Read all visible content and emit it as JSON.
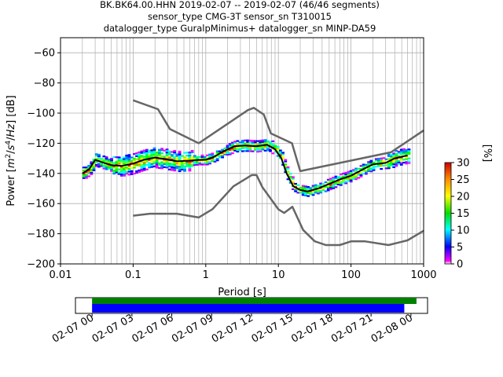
{
  "header": {
    "line1": "BK.BK64.00.HHN   2019-02-07 -- 2019-02-07  (46/46 segments)",
    "line2": "sensor_type CMG-3T sensor_sn T310015",
    "line3": "datalogger_type GuralpMinimus+ datalogger_sn MINP-DA59"
  },
  "chart_data": [
    {
      "type": "heatmap",
      "title": "BK.BK64.00.HHN   2019-02-07 -- 2019-02-07  (46/46 segments)",
      "xlabel": "Period [s]",
      "ylabel": "Power [m2/s4/Hz] [dB]",
      "ylabel_parts": [
        "Power [",
        "m",
        "2",
        "/",
        "s",
        "4",
        "/",
        "Hz",
        "] [dB]"
      ],
      "xscale": "log",
      "xlim": [
        0.01,
        1000
      ],
      "ylim": [
        -200,
        -50
      ],
      "x_ticks": [
        0.01,
        0.1,
        1,
        10,
        100,
        1000
      ],
      "x_tick_labels": [
        "0.01",
        "0.1",
        "1",
        "10",
        "100",
        "1000"
      ],
      "y_ticks": [
        -200,
        -180,
        -160,
        -140,
        -120,
        -100,
        -80,
        -60
      ],
      "y_tick_labels": [
        "−200",
        "−180",
        "−160",
        "−140",
        "−120",
        "−100",
        "−80",
        "−60"
      ],
      "grid": true,
      "colorbar": {
        "label": "[%]",
        "range": [
          0,
          30
        ],
        "ticks": [
          0,
          5,
          10,
          15,
          20,
          25,
          30
        ],
        "tick_labels": [
          "0",
          "5",
          "10",
          "15",
          "20",
          "25",
          "30"
        ]
      },
      "series": [
        {
          "role": "new-high-noise-model",
          "color": "#666666",
          "x": [
            0.1,
            0.22,
            0.32,
            0.8,
            3.8,
            4.6,
            6.3,
            7.9,
            15.4,
            20,
            354.8,
            1000
          ],
          "y": [
            -91.5,
            -97.4,
            -110.5,
            -120,
            -98,
            -96.5,
            -101,
            -113.5,
            -120,
            -138.5,
            -126,
            -111.5
          ]
        },
        {
          "role": "new-low-noise-model",
          "color": "#666666",
          "x": [
            0.1,
            0.17,
            0.4,
            0.8,
            1.24,
            2.4,
            4.3,
            5,
            6,
            10,
            12,
            15.6,
            21.9,
            31.6,
            45,
            70,
            101,
            154,
            328,
            600,
            1000
          ],
          "y": [
            -168,
            -166.7,
            -166.7,
            -169.2,
            -163.7,
            -148.6,
            -141.1,
            -141.1,
            -149,
            -163.8,
            -166.2,
            -162.1,
            -177.5,
            -185,
            -187.5,
            -187.5,
            -185,
            -185,
            -187.5,
            -184.4,
            -178
          ]
        },
        {
          "role": "mode",
          "color": "#000000",
          "x": [
            0.02,
            0.025,
            0.03,
            0.04,
            0.05,
            0.07,
            0.1,
            0.14,
            0.2,
            0.28,
            0.4,
            0.6,
            0.8,
            1.0,
            1.3,
            1.8,
            2.5,
            3.5,
            5,
            7,
            9,
            11,
            13,
            16,
            20,
            25,
            35,
            50,
            70,
            100,
            150,
            200,
            300,
            400,
            600
          ],
          "y": [
            -140,
            -137,
            -131,
            -133,
            -134.5,
            -135,
            -133.5,
            -131,
            -129.5,
            -130.5,
            -132,
            -131.5,
            -131,
            -131,
            -129,
            -125,
            -122,
            -121.5,
            -122,
            -121,
            -124,
            -130,
            -140,
            -148.5,
            -151,
            -152,
            -150,
            -147,
            -144,
            -141.5,
            -137,
            -134,
            -133,
            -130,
            -128
          ]
        }
      ],
      "psd_density_note": "colored cells between approx. -155 and -120 dB following the mode curve"
    },
    {
      "type": "timeline",
      "xlim": [
        "2019-02-06T22:45",
        "2019-02-08T01:15"
      ],
      "x_tick_labels": [
        "02-07 00",
        "02-07 03",
        "02-07 06",
        "02-07 09",
        "02-07 12",
        "02-07 15",
        "02-07 18",
        "02-07 21",
        "02-08 00"
      ],
      "series": [
        {
          "role": "data-coverage",
          "color": "#008000",
          "start": "2019-02-07T00:00",
          "end": "2019-02-08T00:25"
        },
        {
          "role": "psd-segments",
          "color": "#0000ff",
          "start": "2019-02-07T00:00",
          "end": "2019-02-07T23:30"
        }
      ]
    }
  ]
}
